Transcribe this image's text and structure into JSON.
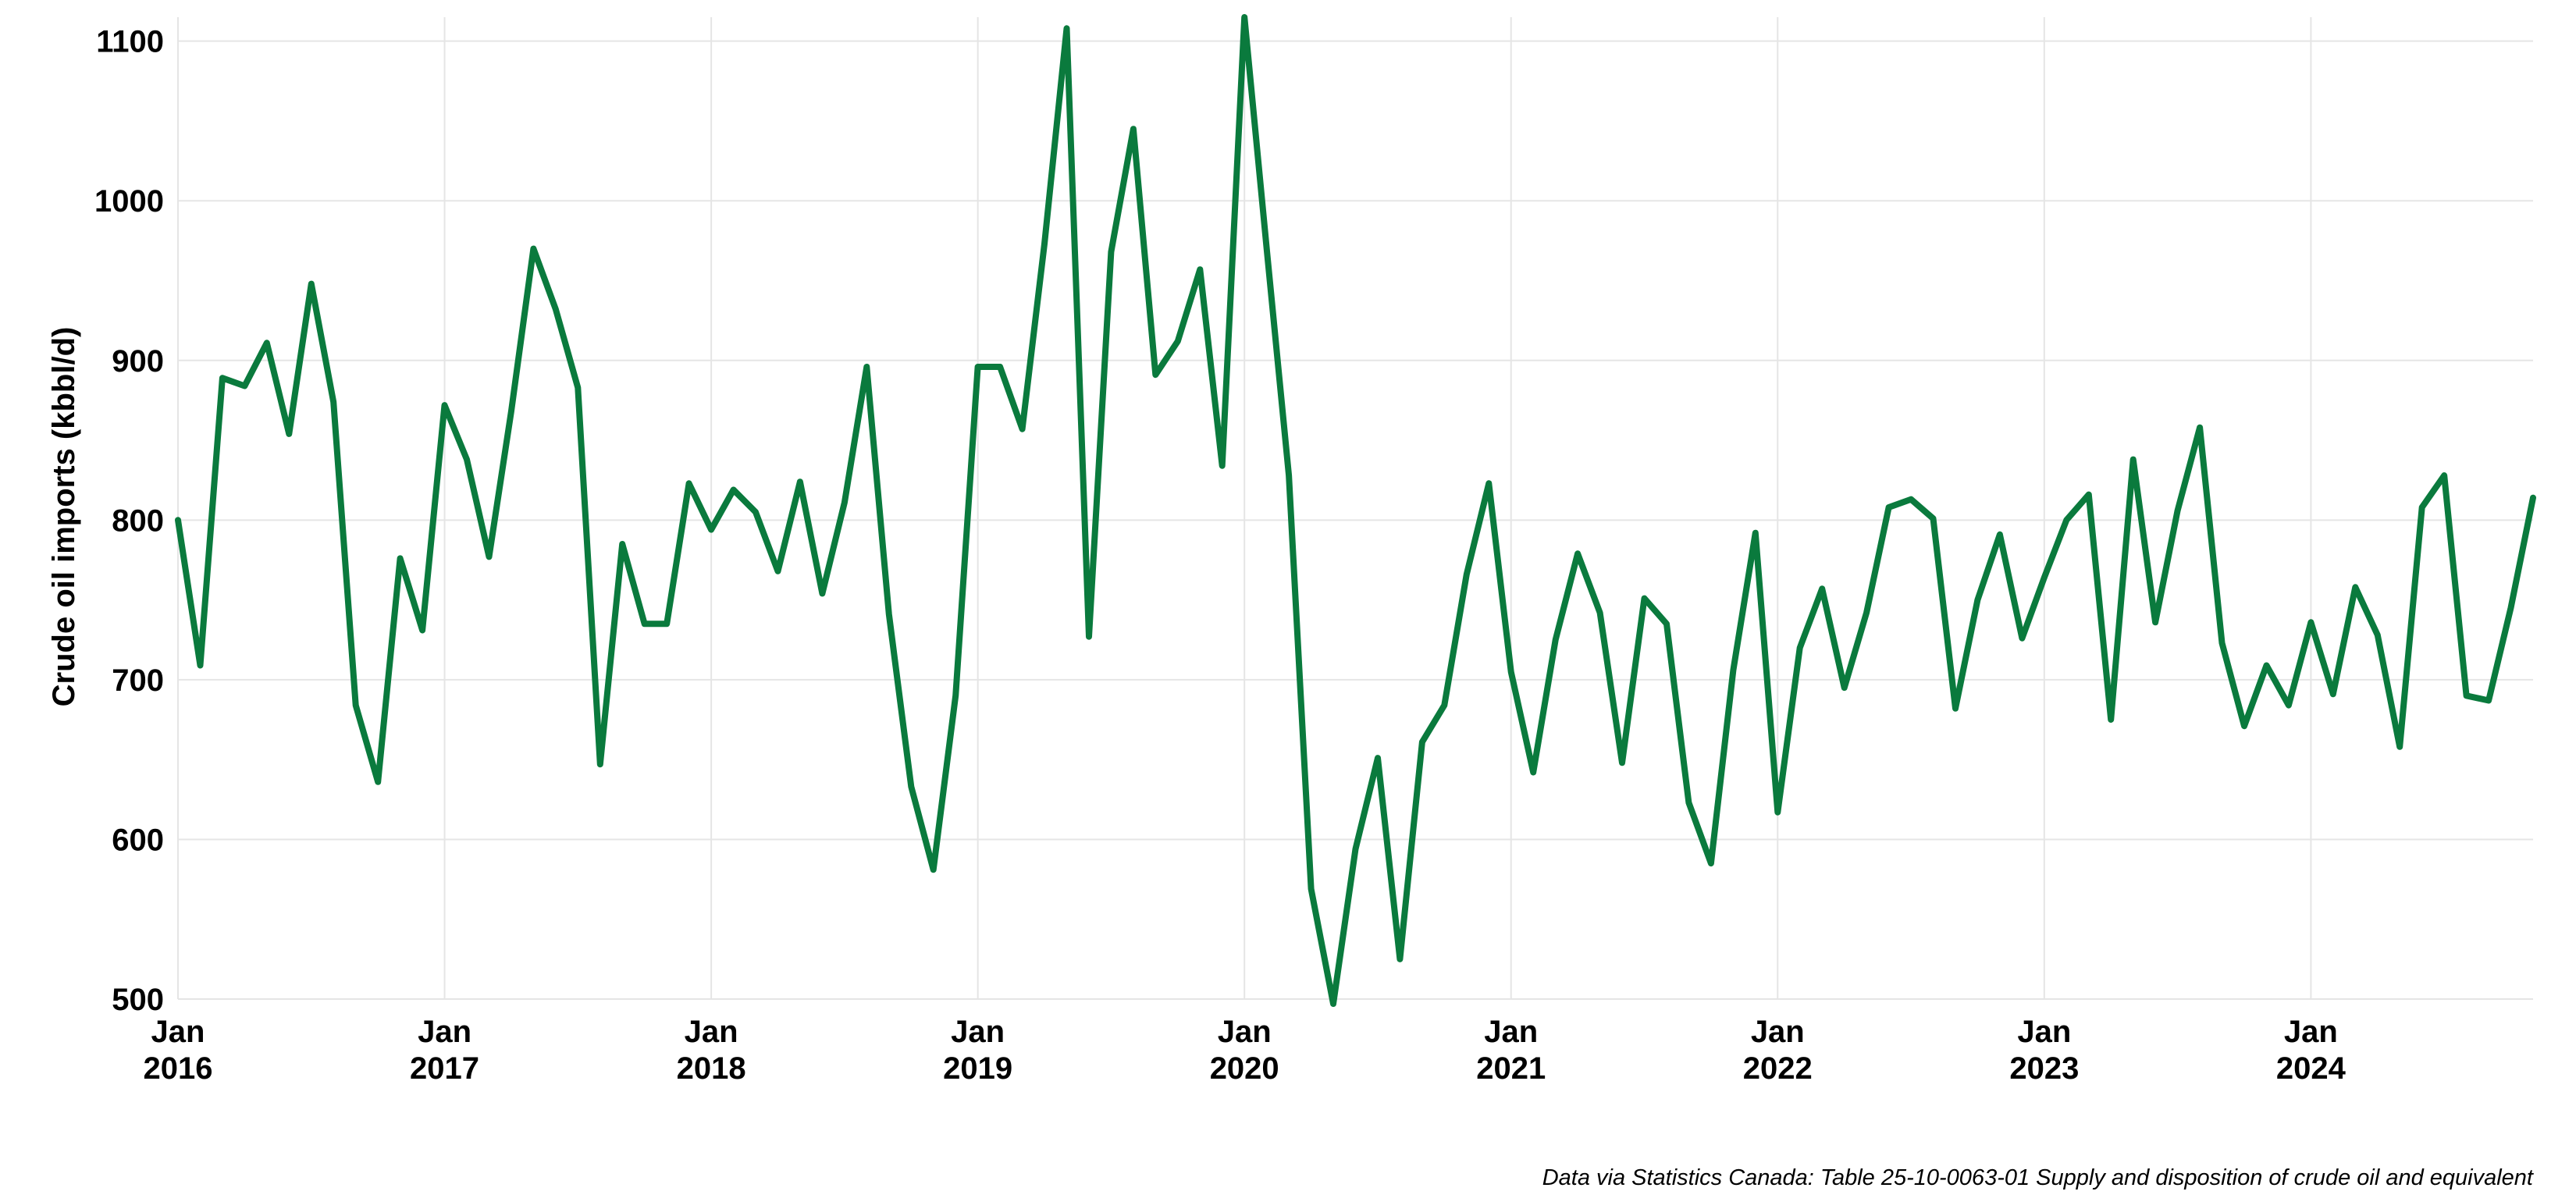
{
  "chart_data": {
    "type": "line",
    "title": "",
    "xlabel": "",
    "ylabel": "Crude oil imports (kbbl/d)",
    "caption": "Data via Statistics Canada: Table 25-10-0063-01  Supply and disposition of crude oil and equivalent",
    "ylim": [
      500,
      1115
    ],
    "xlim": [
      "2016-01",
      "2024-11"
    ],
    "y_ticks": [
      500,
      600,
      700,
      800,
      900,
      1000,
      1100
    ],
    "x_ticks": [
      {
        "date": "2016-01",
        "month": "Jan",
        "year": "2016"
      },
      {
        "date": "2017-01",
        "month": "Jan",
        "year": "2017"
      },
      {
        "date": "2018-01",
        "month": "Jan",
        "year": "2018"
      },
      {
        "date": "2019-01",
        "month": "Jan",
        "year": "2019"
      },
      {
        "date": "2020-01",
        "month": "Jan",
        "year": "2020"
      },
      {
        "date": "2021-01",
        "month": "Jan",
        "year": "2021"
      },
      {
        "date": "2022-01",
        "month": "Jan",
        "year": "2022"
      },
      {
        "date": "2023-01",
        "month": "Jan",
        "year": "2023"
      },
      {
        "date": "2024-01",
        "month": "Jan",
        "year": "2024"
      }
    ],
    "grid": true,
    "legend": "none",
    "color": "#0a7a3d",
    "x": [
      "2016-01",
      "2016-02",
      "2016-03",
      "2016-04",
      "2016-05",
      "2016-06",
      "2016-07",
      "2016-08",
      "2016-09",
      "2016-10",
      "2016-11",
      "2016-12",
      "2017-01",
      "2017-02",
      "2017-03",
      "2017-04",
      "2017-05",
      "2017-06",
      "2017-07",
      "2017-08",
      "2017-09",
      "2017-10",
      "2017-11",
      "2017-12",
      "2018-01",
      "2018-02",
      "2018-03",
      "2018-04",
      "2018-05",
      "2018-06",
      "2018-07",
      "2018-08",
      "2018-09",
      "2018-10",
      "2018-11",
      "2018-12",
      "2019-01",
      "2019-02",
      "2019-03",
      "2019-04",
      "2019-05",
      "2019-06",
      "2019-07",
      "2019-08",
      "2019-09",
      "2019-10",
      "2019-11",
      "2019-12",
      "2020-01",
      "2020-02",
      "2020-03",
      "2020-04",
      "2020-05",
      "2020-06",
      "2020-07",
      "2020-08",
      "2020-09",
      "2020-10",
      "2020-11",
      "2020-12",
      "2021-01",
      "2021-02",
      "2021-03",
      "2021-04",
      "2021-05",
      "2021-06",
      "2021-07",
      "2021-08",
      "2021-09",
      "2021-10",
      "2021-11",
      "2021-12",
      "2022-01",
      "2022-02",
      "2022-03",
      "2022-04",
      "2022-05",
      "2022-06",
      "2022-07",
      "2022-08",
      "2022-09",
      "2022-10",
      "2022-11",
      "2022-12",
      "2023-01",
      "2023-02",
      "2023-03",
      "2023-04",
      "2023-05",
      "2023-06",
      "2023-07",
      "2023-08",
      "2023-09",
      "2023-10",
      "2023-11",
      "2023-12",
      "2024-01",
      "2024-02",
      "2024-03",
      "2024-04",
      "2024-05",
      "2024-06",
      "2024-07",
      "2024-08",
      "2024-09",
      "2024-10",
      "2024-11"
    ],
    "values": [
      800,
      709,
      889,
      884,
      911,
      854,
      948,
      874,
      684,
      636,
      776,
      731,
      872,
      838,
      777,
      868,
      970,
      932,
      883,
      647,
      785,
      735,
      735,
      823,
      794,
      819,
      805,
      768,
      824,
      754,
      811,
      896,
      741,
      633,
      581,
      690,
      896,
      896,
      857,
      973,
      1108,
      727,
      968,
      1045,
      891,
      912,
      957,
      834,
      1115,
      970,
      828,
      569,
      497,
      594,
      651,
      525,
      661,
      684,
      766,
      823,
      705,
      642,
      725,
      779,
      742,
      648,
      751,
      735,
      623,
      585,
      706,
      792,
      617,
      720,
      757,
      695,
      742,
      808,
      813,
      801,
      682,
      750,
      791,
      726,
      764,
      800,
      816,
      675,
      838,
      736,
      806,
      858,
      723,
      671,
      709,
      684,
      736,
      691,
      758,
      728,
      658,
      808,
      828,
      690,
      687,
      745,
      814
    ]
  }
}
